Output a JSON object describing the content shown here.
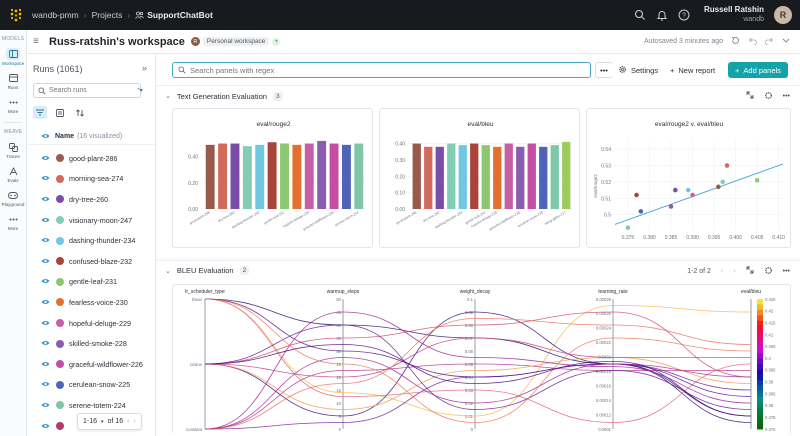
{
  "topbar": {
    "crumbs": [
      "wandb-pmm",
      "Projects",
      "SupportChatBot"
    ],
    "separator": "›",
    "user_name": "Russell Ratshin",
    "user_team": "wandb",
    "avatar_letter": "R"
  },
  "rail": {
    "models_label": "MODELS",
    "weave_label": "WEAVE",
    "items_top": [
      "Workspace",
      "Runs",
      "More"
    ],
    "items_weave": [
      "Traces",
      "Evals",
      "Playground",
      "More"
    ]
  },
  "header": {
    "title": "Russ-ratshin's workspace",
    "badge_letter": "R",
    "badge_label": "Personal workspace",
    "autosave": "Autosaved 3 minutes ago"
  },
  "runs": {
    "title": "Runs (1061)",
    "search_placeholder": "Search runs",
    "name_header": "Name",
    "visualized": "(16 visualized)",
    "items": [
      {
        "name": "good-plant-286",
        "color": "#9a5a4b"
      },
      {
        "name": "morning-sea-274",
        "color": "#d36b5c"
      },
      {
        "name": "dry-tree-260",
        "color": "#7a4ea6"
      },
      {
        "name": "visionary-moon-247",
        "color": "#82cdb5"
      },
      {
        "name": "dashing-thunder-234",
        "color": "#6fc7e1"
      },
      {
        "name": "confused-blaze-232",
        "color": "#a8453a"
      },
      {
        "name": "gentle-leaf-231",
        "color": "#8cc86f"
      },
      {
        "name": "fearless-voice-230",
        "color": "#e4702f"
      },
      {
        "name": "hopeful-deluge-229",
        "color": "#c65fa6"
      },
      {
        "name": "skilled-smoke-228",
        "color": "#8b5db0"
      },
      {
        "name": "graceful-wildflower-226",
        "color": "#c44fa0"
      },
      {
        "name": "cerulean-snow-225",
        "color": "#4f63b8"
      },
      {
        "name": "serene-totem-224",
        "color": "#7fc7a6"
      },
      {
        "name": "",
        "color": "#b13a6b"
      }
    ],
    "pager": "1-16",
    "pager_of": "of 16"
  },
  "toolbar": {
    "search_placeholder": "Search panels with regex",
    "settings": "Settings",
    "new_report": "New report",
    "add_panels": "Add panels"
  },
  "sections": [
    {
      "title": "Text Generation Evaluation",
      "count": "3"
    },
    {
      "title": "BLEU Evaluation",
      "count": "2",
      "pager": "1-2 of 2"
    }
  ],
  "colors": {
    "accent": "#13a3a8",
    "fit_line": "#4aa6d6"
  },
  "chart_data": [
    {
      "type": "bar",
      "title": "eval/rouge2",
      "categories": [
        "good-plant-286",
        "morning-sea-274",
        "dry-tree-260",
        "visionary-moon-247",
        "dashing-thunder-234",
        "confused-blaze-232",
        "gentle-leaf-231",
        "fearless-voice-230",
        "hopeful-deluge-229",
        "skilled-smoke-228",
        "graceful-wildflower-226",
        "cerulean-snow-225",
        "serene-totem-224"
      ],
      "values": [
        0.49,
        0.5,
        0.5,
        0.48,
        0.49,
        0.51,
        0.5,
        0.49,
        0.5,
        0.52,
        0.5,
        0.49,
        0.5
      ],
      "colors": [
        "#9a5a4b",
        "#d36b5c",
        "#7a4ea6",
        "#82cdb5",
        "#6fc7e1",
        "#a8453a",
        "#8cc86f",
        "#e4702f",
        "#c65fa6",
        "#8b5db0",
        "#c44fa0",
        "#4f63b8",
        "#7fc7a6"
      ],
      "xtick_labels": [
        "good-plant-286",
        "dry-tree-260",
        "dashing-thunder-234",
        "gentle-leaf-231",
        "hopeful-deluge-229",
        "graceful-wildflower-226",
        "serene-totem-224"
      ],
      "yticks": [
        "0.40",
        "0.20",
        "0.00"
      ],
      "ylim": [
        0,
        0.55
      ]
    },
    {
      "type": "bar",
      "title": "eval/bleu",
      "categories": [
        "good-plant-286",
        "morning-sea-274",
        "dry-tree-260",
        "visionary-moon-247",
        "dashing-thunder-234",
        "confused-blaze-232",
        "gentle-leaf-231",
        "fearless-voice-230",
        "hopeful-deluge-229",
        "skilled-smoke-228",
        "graceful-wildflower-226",
        "cerulean-snow-225",
        "serene-totem-224",
        "rising-glitter-217"
      ],
      "values": [
        0.4,
        0.38,
        0.38,
        0.4,
        0.39,
        0.4,
        0.39,
        0.38,
        0.4,
        0.38,
        0.4,
        0.38,
        0.39,
        0.41
      ],
      "colors": [
        "#9a5a4b",
        "#d36b5c",
        "#7a4ea6",
        "#82cdb5",
        "#6fc7e1",
        "#a8453a",
        "#8cc86f",
        "#e4702f",
        "#c65fa6",
        "#8b5db0",
        "#c44fa0",
        "#4f63b8",
        "#7fc7a6",
        "#9ccb5b"
      ],
      "xtick_labels": [
        "good-plant-286",
        "dry-tree-260",
        "dashing-thunder-234",
        "gentle-leaf-231",
        "hopeful-deluge-229",
        "graceful-wildflower-226",
        "cerulean-snow-225",
        "rising-glitter-217"
      ],
      "yticks": [
        "0.40",
        "0.30",
        "0.20",
        "0.10",
        "0.00"
      ],
      "ylim": [
        0,
        0.44
      ]
    },
    {
      "type": "scatter",
      "title": "eval/rouge2 v. eval/bleu",
      "ylabel": "eval/rouge2",
      "xlim": [
        0.372,
        0.411
      ],
      "ylim": [
        0.49,
        0.545
      ],
      "xticks": [
        "0.375",
        "0.380",
        "0.385",
        "0.390",
        "0.395",
        "0.400",
        "0.405",
        "0.410"
      ],
      "yticks": [
        "0.54",
        "0.53",
        "0.52",
        "0.51",
        "0.5"
      ],
      "points": [
        {
          "x": 0.375,
          "y": 0.492,
          "color": "#82cdb5"
        },
        {
          "x": 0.378,
          "y": 0.502,
          "color": "#4f63b8"
        },
        {
          "x": 0.377,
          "y": 0.512,
          "color": "#a8453a"
        },
        {
          "x": 0.386,
          "y": 0.515,
          "color": "#7a4ea6"
        },
        {
          "x": 0.389,
          "y": 0.515,
          "color": "#6fc7e1"
        },
        {
          "x": 0.39,
          "y": 0.512,
          "color": "#c65fa6"
        },
        {
          "x": 0.385,
          "y": 0.505,
          "color": "#8b5db0"
        },
        {
          "x": 0.397,
          "y": 0.52,
          "color": "#82cdb5"
        },
        {
          "x": 0.398,
          "y": 0.53,
          "color": "#d36b5c"
        },
        {
          "x": 0.396,
          "y": 0.517,
          "color": "#9a5a4b"
        },
        {
          "x": 0.405,
          "y": 0.521,
          "color": "#8cc86f"
        }
      ],
      "fit": [
        [
          0.372,
          0.494
        ],
        [
          0.411,
          0.531
        ]
      ]
    },
    {
      "type": "parallel",
      "axes": [
        {
          "name": "lr_scheduler_type",
          "ticks": [
            "linear",
            "cosine",
            "constant"
          ]
        },
        {
          "name": "warmup_steps",
          "ticks": [
            "50",
            "45",
            "40",
            "35",
            "30",
            "25",
            "20",
            "15",
            "10",
            "5",
            "0"
          ]
        },
        {
          "name": "weight_decay",
          "ticks": [
            "0.1",
            "0.09",
            "0.08",
            "0.07",
            "0.06",
            "0.05",
            "0.04",
            "0.03",
            "0.02",
            "0.01",
            "0"
          ]
        },
        {
          "name": "learning_rate",
          "ticks": [
            "0.00028",
            "0.00026",
            "0.00024",
            "0.00022",
            "0.0002",
            "0.00018",
            "0.00016",
            "0.00014",
            "0.00012",
            "0.0001"
          ]
        },
        {
          "name": "eval/bleu",
          "ticks": [
            "0.425",
            "0.42",
            "0.415",
            "0.41",
            "0.405",
            "0.4",
            "0.395",
            "0.39",
            "0.385",
            "0.38",
            "0.375",
            "0.370"
          ]
        }
      ],
      "lines": [
        {
          "values": [
            0.0,
            0.72,
            0.9,
            0.05,
            0.1
          ],
          "color": "#f4b842"
        },
        {
          "values": [
            0.0,
            0.2,
            0.3,
            0.5,
            0.95
          ],
          "color": "#2a0f6e"
        },
        {
          "values": [
            0.5,
            0.9,
            0.1,
            0.5,
            0.9
          ],
          "color": "#3b0f7a"
        },
        {
          "values": [
            1.0,
            0.95,
            0.6,
            0.5,
            0.7
          ],
          "color": "#7b1f9a"
        },
        {
          "values": [
            0.5,
            0.3,
            0.2,
            0.1,
            0.6
          ],
          "color": "#d04a78"
        },
        {
          "values": [
            1.0,
            0.55,
            0.5,
            0.55,
            0.55
          ],
          "color": "#b0308a"
        },
        {
          "values": [
            0.0,
            0.75,
            0.7,
            0.95,
            0.5
          ],
          "color": "#e0607a"
        },
        {
          "values": [
            0.5,
            0.85,
            0.55,
            0.45,
            0.65
          ],
          "color": "#f29a4f"
        },
        {
          "values": [
            1.0,
            0.1,
            0.45,
            0.52,
            0.8
          ],
          "color": "#9b2595"
        },
        {
          "values": [
            0.5,
            0.6,
            0.3,
            0.45,
            0.45
          ],
          "color": "#c3408a"
        },
        {
          "values": [
            0.0,
            0.4,
            0.6,
            0.5,
            0.75
          ],
          "color": "#5a1590"
        },
        {
          "values": [
            1.0,
            0.65,
            0.15,
            0.2,
            0.35
          ],
          "color": "#ec7060"
        },
        {
          "values": [
            0.5,
            0.2,
            0.85,
            0.55,
            0.85
          ],
          "color": "#6c1a96"
        },
        {
          "values": [
            1.0,
            0.45,
            0.8,
            0.5,
            0.6
          ],
          "color": "#a02a90"
        },
        {
          "values": [
            0.0,
            0.5,
            0.95,
            0.3,
            0.4
          ],
          "color": "#e97a5a"
        },
        {
          "values": [
            0.5,
            0.35,
            0.65,
            0.48,
            0.9
          ],
          "color": "#450f80"
        }
      ]
    }
  ]
}
